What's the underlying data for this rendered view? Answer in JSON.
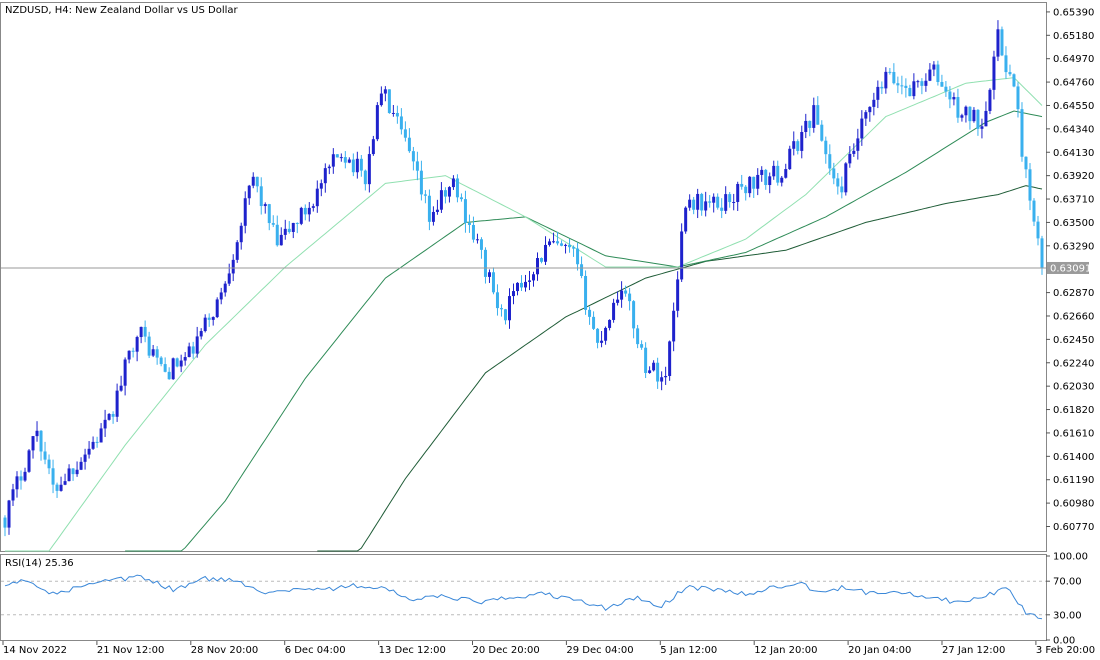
{
  "symbol_title": "NZDUSD, H4:  New Zealand Dollar vs US Dollar",
  "indicator_title": "RSI(14) 25.36",
  "last_price_label": "0.63091",
  "colors": {
    "bull": "#1E22CC",
    "bear": "#39B0EE",
    "ma_fast": "#90E0B0",
    "ma_mid": "#2E8B57",
    "ma_slow": "#1F5C37",
    "rsi": "#3A87D8",
    "price_line": "#9A9A9A"
  },
  "chart_data": [
    {
      "type": "candlestick",
      "y_ticks": [
        "0.65390",
        "0.65180",
        "0.64970",
        "0.64760",
        "0.64550",
        "0.64340",
        "0.64130",
        "0.63920",
        "0.63710",
        "0.63500",
        "0.63290",
        "0.62870",
        "0.62660",
        "0.62450",
        "0.62240",
        "0.62030",
        "0.61820",
        "0.61610",
        "0.61400",
        "0.61190",
        "0.60980",
        "0.60770"
      ],
      "ylim": [
        0.6055,
        0.6547
      ],
      "x_labels": [
        "14 Nov 2022",
        "21 Nov 12:00",
        "28 Nov 20:00",
        "6 Dec 04:00",
        "13 Dec 12:00",
        "20 Dec 20:00",
        "29 Dec 04:00",
        "5 Jan 12:00",
        "12 Jan 20:00",
        "20 Jan 04:00",
        "27 Jan 12:00",
        "3 Feb 20:00"
      ],
      "last_price": 0.63091,
      "price_anchors": [
        [
          0,
          0.6085
        ],
        [
          8,
          0.6165
        ],
        [
          12,
          0.611
        ],
        [
          18,
          0.6135
        ],
        [
          26,
          0.617
        ],
        [
          33,
          0.6255
        ],
        [
          40,
          0.6215
        ],
        [
          46,
          0.623
        ],
        [
          54,
          0.6285
        ],
        [
          62,
          0.639
        ],
        [
          68,
          0.633
        ],
        [
          76,
          0.6365
        ],
        [
          84,
          0.6415
        ],
        [
          90,
          0.639
        ],
        [
          94,
          0.647
        ],
        [
          100,
          0.642
        ],
        [
          106,
          0.6355
        ],
        [
          112,
          0.6385
        ],
        [
          118,
          0.633
        ],
        [
          124,
          0.6265
        ],
        [
          130,
          0.63
        ],
        [
          136,
          0.633
        ],
        [
          142,
          0.632
        ],
        [
          148,
          0.624
        ],
        [
          154,
          0.6295
        ],
        [
          160,
          0.6222
        ],
        [
          165,
          0.621
        ],
        [
          170,
          0.637
        ],
        [
          178,
          0.6365
        ],
        [
          186,
          0.6385
        ],
        [
          194,
          0.6395
        ],
        [
          202,
          0.645
        ],
        [
          208,
          0.6375
        ],
        [
          214,
          0.6435
        ],
        [
          220,
          0.648
        ],
        [
          226,
          0.647
        ],
        [
          232,
          0.6485
        ],
        [
          238,
          0.645
        ],
        [
          244,
          0.644
        ],
        [
          248,
          0.6515
        ],
        [
          252,
          0.647
        ],
        [
          256,
          0.6365
        ],
        [
          259,
          0.6309
        ]
      ],
      "ma_fast_anchors": [
        [
          0,
          0.6
        ],
        [
          30,
          0.615
        ],
        [
          50,
          0.624
        ],
        [
          70,
          0.631
        ],
        [
          95,
          0.6385
        ],
        [
          110,
          0.6392
        ],
        [
          130,
          0.6355
        ],
        [
          150,
          0.631
        ],
        [
          168,
          0.631
        ],
        [
          185,
          0.6335
        ],
        [
          200,
          0.6375
        ],
        [
          220,
          0.6445
        ],
        [
          240,
          0.6475
        ],
        [
          252,
          0.648
        ],
        [
          259,
          0.6455
        ]
      ],
      "ma_mid_anchors": [
        [
          30,
          0.5995
        ],
        [
          55,
          0.61
        ],
        [
          75,
          0.621
        ],
        [
          95,
          0.63
        ],
        [
          115,
          0.635
        ],
        [
          130,
          0.6355
        ],
        [
          150,
          0.632
        ],
        [
          168,
          0.631
        ],
        [
          185,
          0.6323
        ],
        [
          205,
          0.6355
        ],
        [
          225,
          0.6395
        ],
        [
          245,
          0.644
        ],
        [
          252,
          0.645
        ],
        [
          259,
          0.6445
        ]
      ],
      "ma_slow_anchors": [
        [
          78,
          0.5995
        ],
        [
          100,
          0.612
        ],
        [
          120,
          0.6215
        ],
        [
          140,
          0.6265
        ],
        [
          160,
          0.63
        ],
        [
          175,
          0.6315
        ],
        [
          195,
          0.6325
        ],
        [
          215,
          0.635
        ],
        [
          235,
          0.6367
        ],
        [
          248,
          0.6375
        ],
        [
          255,
          0.6383
        ],
        [
          259,
          0.638
        ]
      ]
    },
    {
      "type": "line",
      "name": "RSI(14)",
      "y_ticks": [
        "100.00",
        "70.00",
        "30.00",
        "0.00"
      ],
      "levels": [
        70,
        30
      ],
      "ylim": [
        0,
        100
      ],
      "current_value": 25.36,
      "rsi_anchors": [
        [
          0,
          63
        ],
        [
          6,
          72
        ],
        [
          12,
          55
        ],
        [
          18,
          62
        ],
        [
          26,
          70
        ],
        [
          34,
          75
        ],
        [
          42,
          60
        ],
        [
          50,
          73
        ],
        [
          58,
          70
        ],
        [
          66,
          56
        ],
        [
          74,
          62
        ],
        [
          80,
          60
        ],
        [
          88,
          65
        ],
        [
          94,
          62
        ],
        [
          102,
          48
        ],
        [
          110,
          52
        ],
        [
          118,
          45
        ],
        [
          126,
          50
        ],
        [
          134,
          55
        ],
        [
          142,
          48
        ],
        [
          150,
          38
        ],
        [
          158,
          50
        ],
        [
          164,
          40
        ],
        [
          170,
          63
        ],
        [
          178,
          60
        ],
        [
          186,
          54
        ],
        [
          192,
          63
        ],
        [
          198,
          68
        ],
        [
          204,
          56
        ],
        [
          210,
          63
        ],
        [
          216,
          55
        ],
        [
          222,
          60
        ],
        [
          228,
          53
        ],
        [
          234,
          48
        ],
        [
          240,
          44
        ],
        [
          246,
          55
        ],
        [
          250,
          62
        ],
        [
          255,
          33
        ],
        [
          259,
          25.36
        ]
      ]
    }
  ]
}
